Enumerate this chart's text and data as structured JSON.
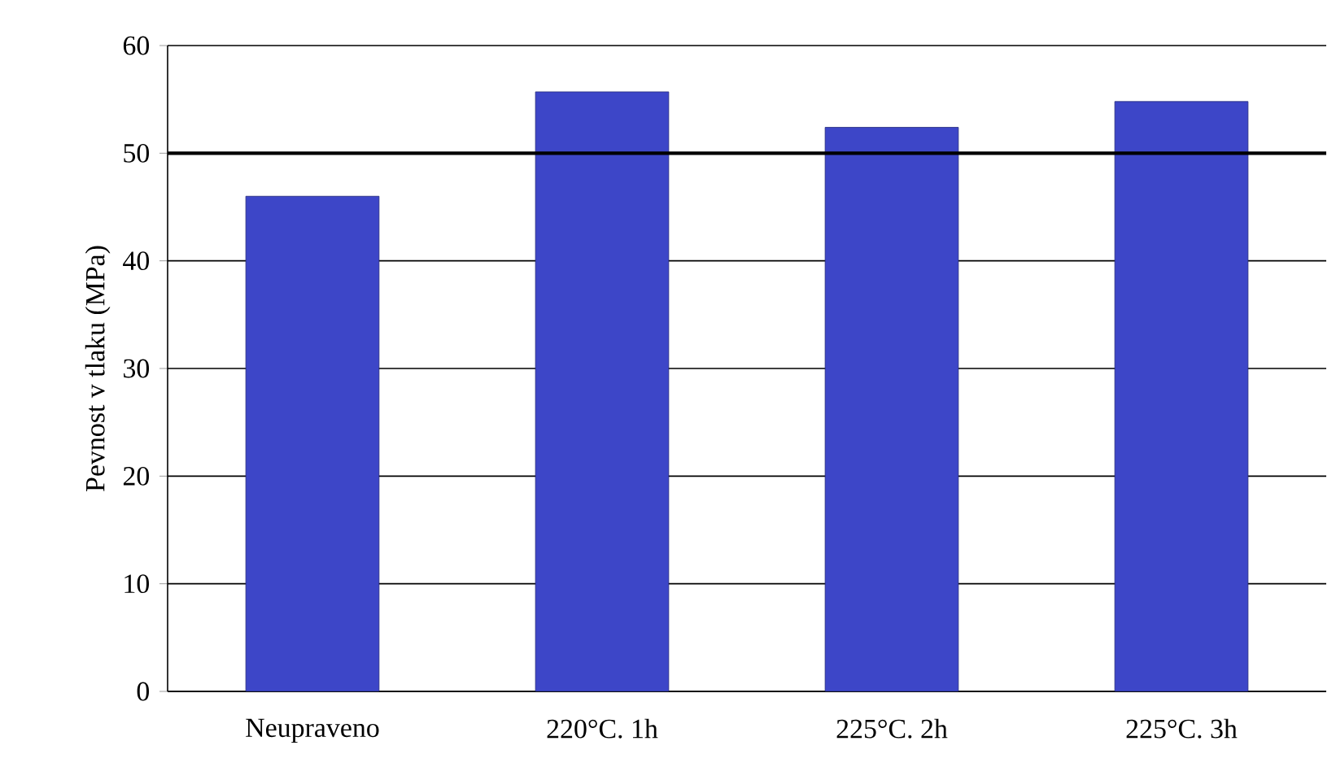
{
  "chart_data": {
    "type": "bar",
    "ylabel": "Pevnost v tlaku (MPa)",
    "categories": [
      "Neupraveno",
      "220°C. 1h",
      "225°C. 2h",
      "225°C. 3h"
    ],
    "values": [
      46,
      55.7,
      52.4,
      54.8
    ],
    "color": "#3d46c8",
    "ylim": [
      0,
      60
    ],
    "yticks": [
      0,
      10,
      20,
      30,
      40,
      50,
      60
    ],
    "grid": "y",
    "ref_lines": [
      {
        "axis": "y",
        "value": 50,
        "color": "#000000"
      }
    ]
  }
}
